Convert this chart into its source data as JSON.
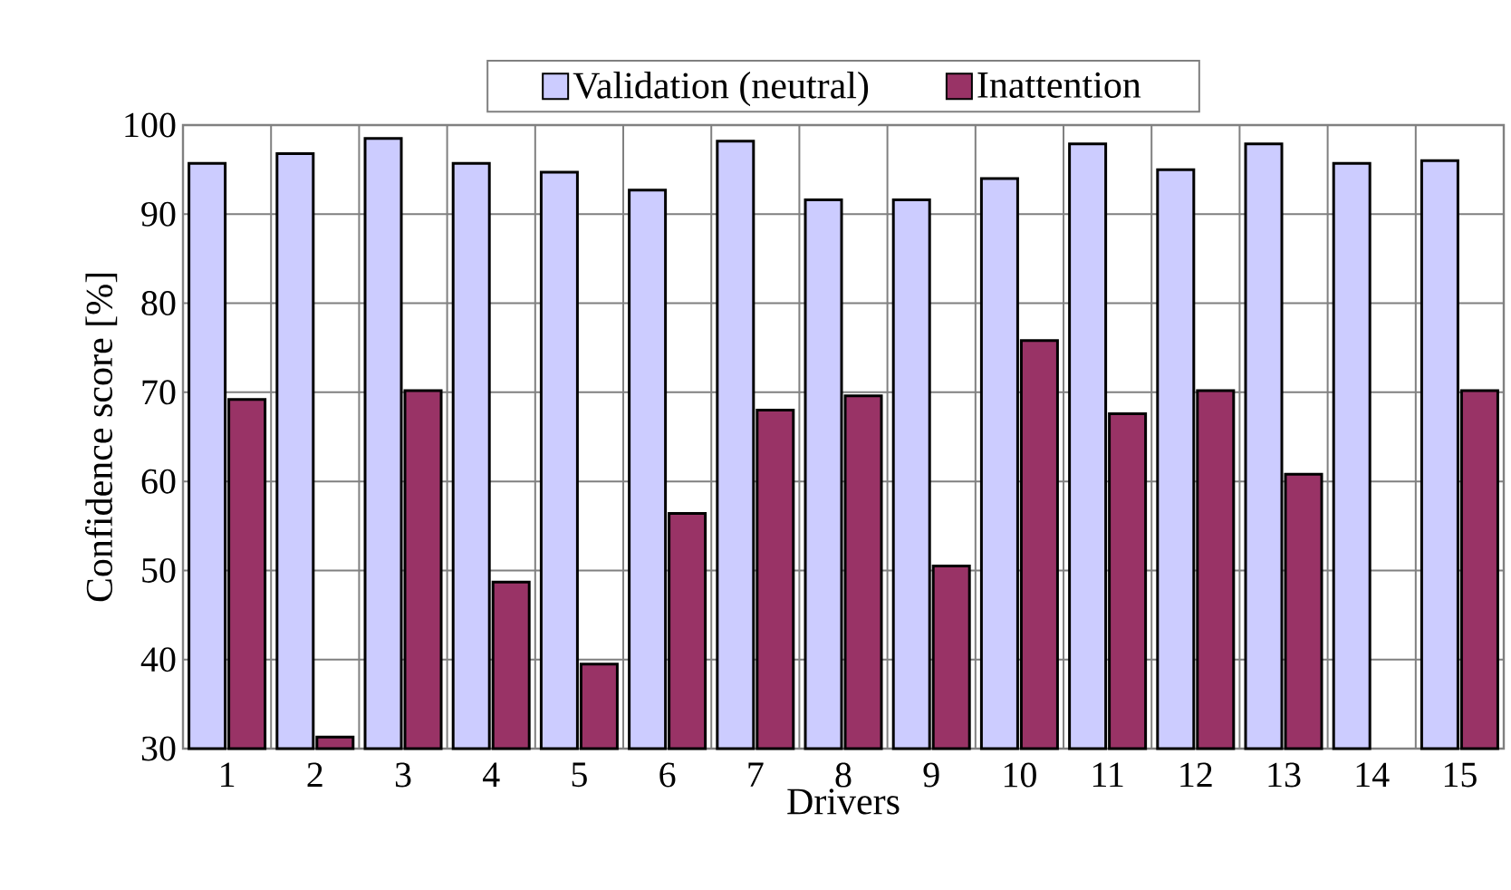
{
  "chart_data": {
    "type": "bar",
    "xlabel": "Drivers",
    "ylabel": "Confidence score [%]",
    "categories": [
      "1",
      "2",
      "3",
      "4",
      "5",
      "6",
      "7",
      "8",
      "9",
      "10",
      "11",
      "12",
      "13",
      "14",
      "15"
    ],
    "series": [
      {
        "name": "Validation (neutral)",
        "color": "#ccccff",
        "values": [
          95.7,
          96.8,
          98.5,
          95.7,
          94.7,
          92.7,
          98.2,
          91.6,
          91.6,
          94.0,
          97.9,
          95.0,
          97.9,
          95.7,
          96.0
        ]
      },
      {
        "name": "Inattention",
        "color": "#993366",
        "values": [
          69.2,
          31.3,
          70.2,
          48.7,
          39.5,
          56.4,
          68.0,
          69.6,
          50.5,
          75.8,
          67.6,
          70.2,
          60.8,
          null,
          70.2
        ]
      }
    ],
    "ylim": [
      30,
      100
    ],
    "yticks": [
      30,
      40,
      50,
      60,
      70,
      80,
      90,
      100
    ],
    "grid": true,
    "legend": "top"
  }
}
